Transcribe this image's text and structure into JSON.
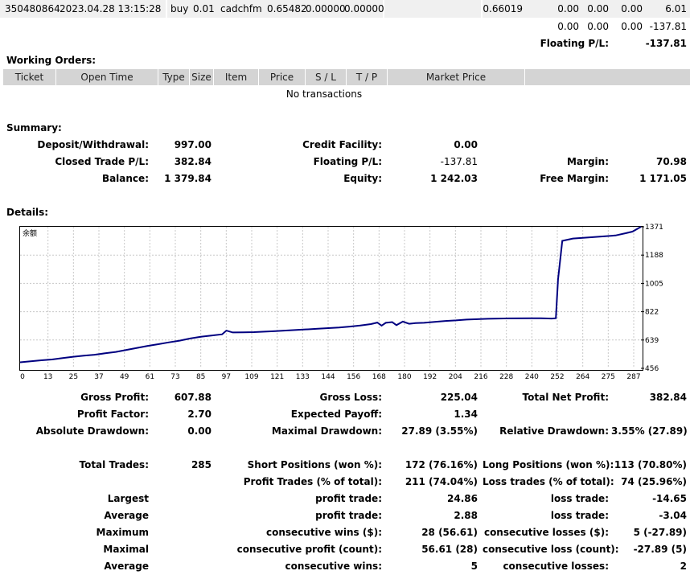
{
  "trade_row": {
    "ticket": "350480864",
    "open_time": "2023.04.28 13:15:28",
    "type": "buy",
    "size": "0.01",
    "item": "cadchfm",
    "price": "0.65482",
    "sl": "0.00000",
    "tp": "0.00000",
    "market_price": "0.66019",
    "commission": "0.00",
    "taxes": "0.00",
    "swap": "0.00",
    "profit": "6.01"
  },
  "totals_row": {
    "commission": "0.00",
    "taxes": "0.00",
    "swap": "0.00",
    "profit": "-137.81"
  },
  "floating_row": {
    "label": "Floating P/L:",
    "value": "-137.81"
  },
  "working_orders": {
    "title": "Working Orders:",
    "headers": [
      "Ticket",
      "Open Time",
      "Type",
      "Size",
      "Item",
      "Price",
      "S / L",
      "T / P",
      "Market Price"
    ],
    "empty_text": "No transactions"
  },
  "summary": {
    "title": "Summary:",
    "deposit_label": "Deposit/Withdrawal:",
    "deposit_value": "997.00",
    "credit_label": "Credit Facility:",
    "credit_value": "0.00",
    "closed_pl_label": "Closed Trade P/L:",
    "closed_pl_value": "382.84",
    "floating_label": "Floating P/L:",
    "floating_value": "-137.81",
    "margin_label": "Margin:",
    "margin_value": "70.98",
    "balance_label": "Balance:",
    "balance_value": "1 379.84",
    "equity_label": "Equity:",
    "equity_value": "1 242.03",
    "free_margin_label": "Free Margin:",
    "free_margin_value": "1 171.05"
  },
  "details": {
    "title": "Details:"
  },
  "chart_data": {
    "type": "line",
    "title": "余额",
    "x_ticks": [
      "0",
      "13",
      "25",
      "37",
      "49",
      "61",
      "73",
      "85",
      "97",
      "109",
      "121",
      "133",
      "144",
      "156",
      "168",
      "180",
      "192",
      "204",
      "216",
      "228",
      "240",
      "252",
      "264",
      "275",
      "287"
    ],
    "y_ticks": [
      "1371",
      "1188",
      "1005",
      "822",
      "639",
      "456"
    ],
    "ylim": [
      456,
      1371
    ],
    "xlim": [
      0,
      292
    ],
    "grid": true,
    "series": [
      {
        "color": "#000080",
        "x": [
          0,
          5,
          10,
          15,
          20,
          25,
          30,
          35,
          40,
          45,
          50,
          55,
          60,
          65,
          70,
          75,
          80,
          85,
          90,
          95,
          97,
          100,
          105,
          110,
          120,
          130,
          140,
          150,
          155,
          160,
          165,
          168,
          170,
          172,
          175,
          177,
          180,
          183,
          186,
          190,
          195,
          200,
          205,
          210,
          220,
          230,
          240,
          245,
          250,
          252,
          253,
          255,
          260,
          270,
          280,
          285,
          288,
          292
        ],
        "y": [
          495,
          501,
          508,
          513,
          522,
          531,
          538,
          544,
          553,
          562,
          575,
          588,
          601,
          612,
          624,
          635,
          649,
          660,
          668,
          676,
          700,
          688,
          689,
          690,
          696,
          704,
          712,
          720,
          726,
          733,
          742,
          752,
          732,
          750,
          755,
          735,
          758,
          744,
          748,
          750,
          756,
          762,
          766,
          771,
          776,
          779,
          780,
          780,
          778,
          780,
          1030,
          1280,
          1295,
          1305,
          1315,
          1330,
          1340,
          1371
        ]
      }
    ]
  },
  "stats": {
    "gross_profit_label": "Gross Profit:",
    "gross_profit_value": "607.88",
    "gross_loss_label": "Gross Loss:",
    "gross_loss_value": "225.04",
    "total_net_label": "Total Net Profit:",
    "total_net_value": "382.84",
    "profit_factor_label": "Profit Factor:",
    "profit_factor_value": "2.70",
    "expected_payoff_label": "Expected Payoff:",
    "expected_payoff_value": "1.34",
    "abs_dd_label": "Absolute Drawdown:",
    "abs_dd_value": "0.00",
    "max_dd_label": "Maximal Drawdown:",
    "max_dd_value": "27.89 (3.55%)",
    "rel_dd_label": "Relative Drawdown:",
    "rel_dd_value": "3.55% (27.89)",
    "total_trades_label": "Total Trades:",
    "total_trades_value": "285",
    "short_label": "Short Positions (won %):",
    "short_value": "172 (76.16%)",
    "long_label": "Long Positions (won %):",
    "long_value": "113 (70.80%)",
    "profit_trades_label": "Profit Trades (% of total):",
    "profit_trades_value": "211 (74.04%)",
    "loss_trades_label": "Loss trades (% of total):",
    "loss_trades_value": "74 (25.96%)",
    "largest_label": "Largest",
    "largest_profit_label": "profit trade:",
    "largest_profit_value": "24.86",
    "largest_loss_label": "loss trade:",
    "largest_loss_value": "-14.65",
    "average_label": "Average",
    "average_profit_label": "profit trade:",
    "average_profit_value": "2.88",
    "average_loss_label": "loss trade:",
    "average_loss_value": "-3.04",
    "maximum_label": "Maximum",
    "max_cons_wins_label": "consecutive wins ($):",
    "max_cons_wins_value": "28 (56.61)",
    "max_cons_losses_label": "consecutive losses ($):",
    "max_cons_losses_value": "5 (-27.89)",
    "maximal_label": "Maximal",
    "maximal_profit_label": "consecutive profit (count):",
    "maximal_profit_value": "56.61 (28)",
    "maximal_loss_label": "consecutive loss (count):",
    "maximal_loss_value": "-27.89 (5)",
    "average2_label": "Average",
    "avg_cons_wins_label": "consecutive wins:",
    "avg_cons_wins_value": "5",
    "avg_cons_losses_label": "consecutive losses:",
    "avg_cons_losses_value": "2"
  }
}
